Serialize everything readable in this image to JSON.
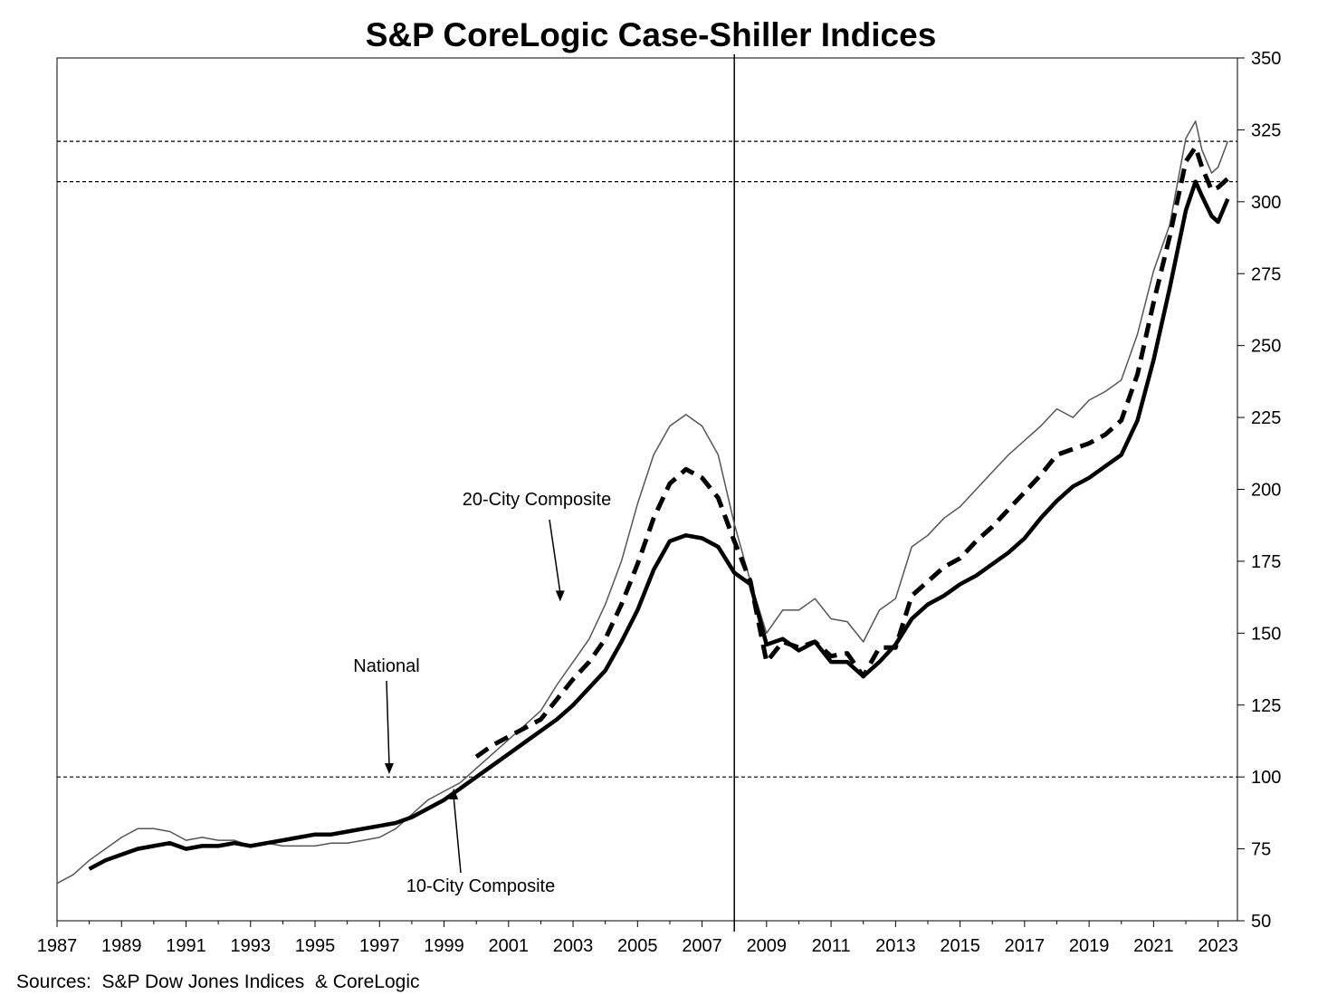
{
  "chart_data": {
    "type": "line",
    "title": "S&P CoreLogic Case-Shiller Indices",
    "source": "Sources:  S&P Dow Jones Indices  & CoreLogic",
    "xlabel": "",
    "ylabel": "",
    "xlim": [
      1987,
      2023.6
    ],
    "ylim": [
      50,
      350
    ],
    "x_ticks": [
      "1987",
      "1989",
      "1991",
      "1993",
      "1995",
      "1997",
      "1999",
      "2001",
      "2003",
      "2005",
      "2007",
      "2009",
      "2011",
      "2013",
      "2015",
      "2017",
      "2019",
      "2021",
      "2023"
    ],
    "y_ticks": [
      "50",
      "75",
      "100",
      "125",
      "150",
      "175",
      "200",
      "225",
      "250",
      "275",
      "300",
      "325",
      "350"
    ],
    "grid": false,
    "reference_lines": [
      {
        "kind": "horizontal-dashed",
        "y": 100
      },
      {
        "kind": "horizontal-dashed",
        "y": 307
      },
      {
        "kind": "horizontal-dashed",
        "y": 321
      },
      {
        "kind": "vertical-solid",
        "x": 2008
      }
    ],
    "annotations": [
      {
        "text": "20-City Composite",
        "points_to": [
          2002.6,
          161
        ]
      },
      {
        "text": "National",
        "points_to": [
          1997.3,
          101
        ]
      },
      {
        "text": "10-City Composite",
        "points_to": [
          1999.3,
          96
        ]
      }
    ],
    "series": [
      {
        "name": "10-City Composite",
        "style": "thin",
        "color": "#555555",
        "x": [
          1987,
          1987.5,
          1988,
          1988.5,
          1989,
          1989.5,
          1990,
          1990.5,
          1991,
          1991.5,
          1992,
          1992.5,
          1993,
          1993.5,
          1994,
          1994.5,
          1995,
          1995.5,
          1996,
          1996.5,
          1997,
          1997.5,
          1998,
          1998.5,
          1999,
          1999.5,
          2000,
          2000.5,
          2001,
          2001.5,
          2002,
          2002.5,
          2003,
          2003.5,
          2004,
          2004.5,
          2005,
          2005.5,
          2006,
          2006.5,
          2007,
          2007.5,
          2008,
          2008.5,
          2009,
          2009.5,
          2010,
          2010.5,
          2011,
          2011.5,
          2012,
          2012.5,
          2013,
          2013.5,
          2014,
          2014.5,
          2015,
          2015.5,
          2016,
          2016.5,
          2017,
          2017.5,
          2018,
          2018.5,
          2019,
          2019.5,
          2020,
          2020.5,
          2021,
          2021.5,
          2022,
          2022.3,
          2022.5,
          2022.8,
          2023,
          2023.3
        ],
        "y": [
          63,
          66,
          71,
          75,
          79,
          82,
          82,
          81,
          78,
          79,
          78,
          78,
          76,
          77,
          76,
          76,
          76,
          77,
          77,
          78,
          79,
          82,
          87,
          92,
          95,
          98,
          103,
          108,
          113,
          118,
          123,
          132,
          140,
          148,
          160,
          175,
          195,
          212,
          222,
          226,
          222,
          212,
          188,
          168,
          150,
          158,
          158,
          162,
          155,
          154,
          147,
          158,
          162,
          180,
          184,
          190,
          194,
          200,
          206,
          212,
          217,
          222,
          228,
          225,
          231,
          234,
          238,
          254,
          276,
          292,
          322,
          328,
          318,
          310,
          312,
          321
        ]
      },
      {
        "name": "20-City Composite",
        "style": "dashed",
        "color": "#000000",
        "x": [
          2000,
          2000.5,
          2001,
          2001.5,
          2002,
          2002.5,
          2003,
          2003.5,
          2004,
          2004.5,
          2005,
          2005.5,
          2006,
          2006.5,
          2007,
          2007.5,
          2008,
          2008.5,
          2009,
          2009.5,
          2010,
          2010.5,
          2011,
          2011.5,
          2012,
          2012.5,
          2013,
          2013.5,
          2014,
          2014.5,
          2015,
          2015.5,
          2016,
          2016.5,
          2017,
          2017.5,
          2018,
          2018.5,
          2019,
          2019.5,
          2020,
          2020.5,
          2021,
          2021.5,
          2022,
          2022.3,
          2022.5,
          2022.8,
          2023,
          2023.3
        ],
        "y": [
          107,
          111,
          114,
          117,
          120,
          127,
          134,
          140,
          148,
          160,
          174,
          190,
          202,
          207,
          204,
          197,
          182,
          168,
          140,
          147,
          145,
          147,
          142,
          143,
          135,
          145,
          145,
          163,
          168,
          173,
          176,
          182,
          187,
          193,
          199,
          205,
          212,
          214,
          216,
          219,
          224,
          240,
          265,
          288,
          314,
          319,
          312,
          304,
          305,
          308
        ]
      },
      {
        "name": "National",
        "style": "thick",
        "color": "#000000",
        "x": [
          1988,
          1988.5,
          1989,
          1989.5,
          1990,
          1990.5,
          1991,
          1991.5,
          1992,
          1992.5,
          1993,
          1993.5,
          1994,
          1994.5,
          1995,
          1995.5,
          1996,
          1996.5,
          1997,
          1997.5,
          1998,
          1998.5,
          1999,
          1999.5,
          2000,
          2000.5,
          2001,
          2001.5,
          2002,
          2002.5,
          2003,
          2003.5,
          2004,
          2004.5,
          2005,
          2005.5,
          2006,
          2006.5,
          2007,
          2007.5,
          2008,
          2008.5,
          2009,
          2009.5,
          2010,
          2010.5,
          2011,
          2011.5,
          2012,
          2012.5,
          2013,
          2013.5,
          2014,
          2014.5,
          2015,
          2015.5,
          2016,
          2016.5,
          2017,
          2017.5,
          2018,
          2018.5,
          2019,
          2019.5,
          2020,
          2020.5,
          2021,
          2021.5,
          2022,
          2022.3,
          2022.5,
          2022.8,
          2023,
          2023.3
        ],
        "y": [
          68,
          71,
          73,
          75,
          76,
          77,
          75,
          76,
          76,
          77,
          76,
          77,
          78,
          79,
          80,
          80,
          81,
          82,
          83,
          84,
          86,
          89,
          92,
          96,
          100,
          104,
          108,
          112,
          116,
          120,
          125,
          131,
          137,
          147,
          158,
          172,
          182,
          184,
          183,
          180,
          171,
          167,
          146,
          148,
          144,
          147,
          140,
          140,
          135,
          140,
          146,
          155,
          160,
          163,
          167,
          170,
          174,
          178,
          183,
          190,
          196,
          201,
          204,
          208,
          212,
          224,
          245,
          270,
          297,
          307,
          302,
          295,
          293,
          301
        ]
      }
    ]
  }
}
